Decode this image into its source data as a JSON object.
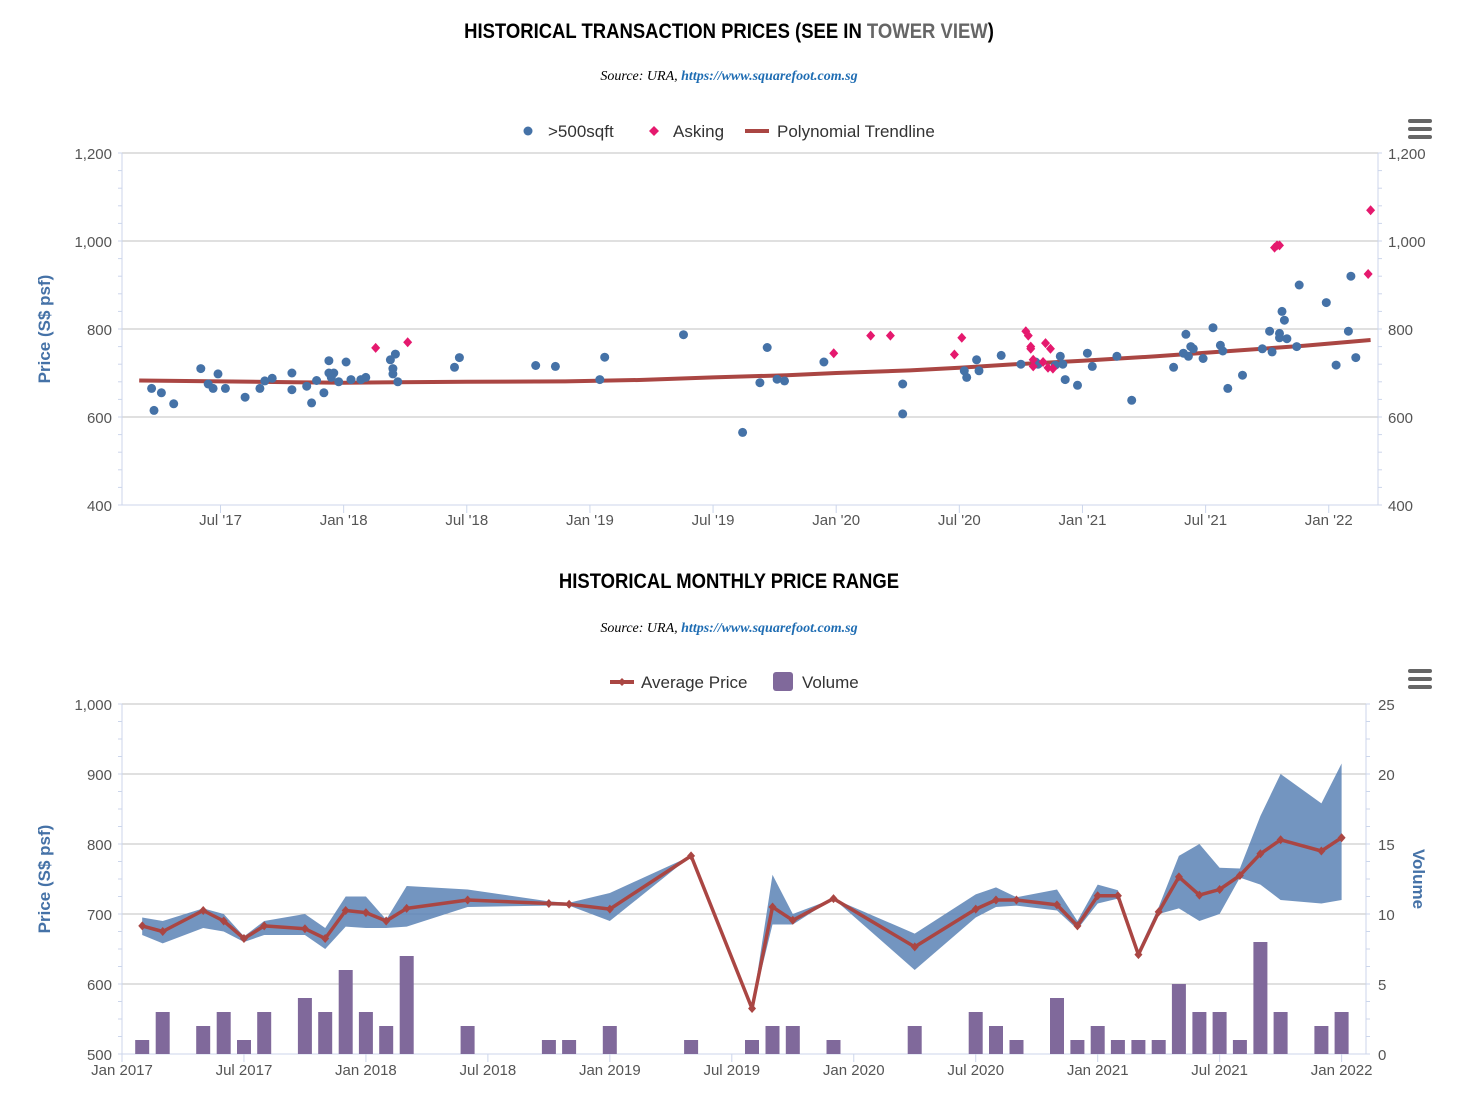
{
  "chart1": {
    "title_main": "HISTORICAL TRANSACTION PRICES (SEE IN ",
    "title_link": "TOWER VIEW",
    "title_end": ")",
    "source_prefix": "Source: URA, ",
    "source_link": "https://www.squarefoot.com.sg"
  },
  "chart2": {
    "title": "HISTORICAL MONTHLY PRICE RANGE",
    "source_prefix": "Source: URA, ",
    "source_link": "https://www.squarefoot.com.sg"
  },
  "colors": {
    "blue": "#4572a7",
    "pink": "#e5196e",
    "red": "#aa4643",
    "purple": "#80699b",
    "range": "#5b83b5"
  },
  "chart_data": [
    {
      "type": "scatter",
      "title": "HISTORICAL TRANSACTION PRICES (SEE IN TOWER VIEW)",
      "ylabel": "Price (S$ psf)",
      "ylim": [
        400,
        1200
      ],
      "yticks": [
        "400",
        "600",
        "800",
        "1,000",
        "1,200"
      ],
      "xlim": [
        2017.1,
        2022.2
      ],
      "xticks": [
        {
          "v": 2017.5,
          "label": "Jul '17"
        },
        {
          "v": 2018.0,
          "label": "Jan '18"
        },
        {
          "v": 2018.5,
          "label": "Jul '18"
        },
        {
          "v": 2019.0,
          "label": "Jan '19"
        },
        {
          "v": 2019.5,
          "label": "Jul '19"
        },
        {
          "v": 2020.0,
          "label": "Jan '20"
        },
        {
          "v": 2020.5,
          "label": "Jul '20"
        },
        {
          "v": 2021.0,
          "label": "Jan '21"
        },
        {
          "v": 2021.5,
          "label": "Jul '21"
        },
        {
          "v": 2022.0,
          "label": "Jan '22"
        }
      ],
      "grid": true,
      "legend": ">500sqft, Asking, Polynomial Trendline at top-center",
      "series": [
        {
          "name": ">500sqft",
          "marker": "circle",
          "points": [
            [
              2017.22,
              665
            ],
            [
              2017.23,
              615
            ],
            [
              2017.26,
              655
            ],
            [
              2017.31,
              630
            ],
            [
              2017.42,
              710
            ],
            [
              2017.45,
              675
            ],
            [
              2017.47,
              665
            ],
            [
              2017.49,
              698
            ],
            [
              2017.52,
              665
            ],
            [
              2017.6,
              645
            ],
            [
              2017.66,
              665
            ],
            [
              2017.68,
              682
            ],
            [
              2017.71,
              688
            ],
            [
              2017.79,
              662
            ],
            [
              2017.79,
              700
            ],
            [
              2017.85,
              670
            ],
            [
              2017.87,
              632
            ],
            [
              2017.89,
              683
            ],
            [
              2017.92,
              655
            ],
            [
              2017.94,
              700
            ],
            [
              2017.94,
              728
            ],
            [
              2017.95,
              690
            ],
            [
              2017.96,
              700
            ],
            [
              2017.98,
              680
            ],
            [
              2018.01,
              725
            ],
            [
              2018.03,
              685
            ],
            [
              2018.07,
              685
            ],
            [
              2018.09,
              690
            ],
            [
              2018.19,
              730
            ],
            [
              2018.2,
              710
            ],
            [
              2018.2,
              698
            ],
            [
              2018.21,
              743
            ],
            [
              2018.22,
              680
            ],
            [
              2018.45,
              713
            ],
            [
              2018.47,
              735
            ],
            [
              2018.78,
              717
            ],
            [
              2018.86,
              715
            ],
            [
              2019.04,
              685
            ],
            [
              2019.06,
              736
            ],
            [
              2019.38,
              787
            ],
            [
              2019.62,
              565
            ],
            [
              2019.69,
              678
            ],
            [
              2019.72,
              758
            ],
            [
              2019.76,
              686
            ],
            [
              2019.79,
              682
            ],
            [
              2019.95,
              725
            ],
            [
              2020.27,
              607
            ],
            [
              2020.27,
              675
            ],
            [
              2020.52,
              705
            ],
            [
              2020.53,
              690
            ],
            [
              2020.57,
              730
            ],
            [
              2020.58,
              705
            ],
            [
              2020.67,
              740
            ],
            [
              2020.75,
              720
            ],
            [
              2020.81,
              725
            ],
            [
              2020.82,
              720
            ],
            [
              2020.89,
              718
            ],
            [
              2020.91,
              738
            ],
            [
              2020.92,
              720
            ],
            [
              2020.93,
              685
            ],
            [
              2020.98,
              672
            ],
            [
              2021.02,
              745
            ],
            [
              2021.04,
              715
            ],
            [
              2021.14,
              738
            ],
            [
              2021.2,
              638
            ],
            [
              2021.37,
              713
            ],
            [
              2021.41,
              745
            ],
            [
              2021.42,
              788
            ],
            [
              2021.43,
              738
            ],
            [
              2021.44,
              760
            ],
            [
              2021.45,
              755
            ],
            [
              2021.49,
              733
            ],
            [
              2021.53,
              803
            ],
            [
              2021.56,
              763
            ],
            [
              2021.57,
              750
            ],
            [
              2021.59,
              665
            ],
            [
              2021.65,
              695
            ],
            [
              2021.73,
              755
            ],
            [
              2021.76,
              795
            ],
            [
              2021.77,
              748
            ],
            [
              2021.8,
              790
            ],
            [
              2021.8,
              780
            ],
            [
              2021.81,
              840
            ],
            [
              2021.82,
              820
            ],
            [
              2021.83,
              778
            ],
            [
              2021.87,
              760
            ],
            [
              2021.88,
              900
            ],
            [
              2021.99,
              860
            ],
            [
              2022.03,
              718
            ],
            [
              2022.08,
              795
            ],
            [
              2022.09,
              920
            ],
            [
              2022.11,
              735
            ]
          ]
        },
        {
          "name": "Asking",
          "marker": "diamond",
          "points": [
            [
              2018.13,
              757
            ],
            [
              2018.26,
              770
            ],
            [
              2019.99,
              745
            ],
            [
              2020.14,
              785
            ],
            [
              2020.22,
              785
            ],
            [
              2020.48,
              742
            ],
            [
              2020.51,
              780
            ],
            [
              2020.77,
              795
            ],
            [
              2020.78,
              785
            ],
            [
              2020.79,
              760
            ],
            [
              2020.79,
              755
            ],
            [
              2020.8,
              730
            ],
            [
              2020.8,
              715
            ],
            [
              2020.84,
              725
            ],
            [
              2020.85,
              768
            ],
            [
              2020.86,
              712
            ],
            [
              2020.87,
              755
            ],
            [
              2020.88,
              710
            ],
            [
              2021.78,
              985
            ],
            [
              2021.79,
              990
            ],
            [
              2021.8,
              990
            ],
            [
              2022.16,
              925
            ],
            [
              2022.17,
              1070
            ]
          ]
        },
        {
          "name": "Polynomial Trendline",
          "marker": "line",
          "points": [
            [
              2017.17,
              683
            ],
            [
              2017.5,
              681
            ],
            [
              2017.8,
              679
            ],
            [
              2018.0,
              678
            ],
            [
              2018.5,
              680
            ],
            [
              2018.9,
              681
            ],
            [
              2019.2,
              684
            ],
            [
              2019.5,
              690
            ],
            [
              2019.8,
              695
            ],
            [
              2020.0,
              700
            ],
            [
              2020.3,
              706
            ],
            [
              2020.5,
              712
            ],
            [
              2020.7,
              719
            ],
            [
              2021.0,
              728
            ],
            [
              2021.3,
              738
            ],
            [
              2021.6,
              750
            ],
            [
              2021.9,
              762
            ],
            [
              2022.17,
              775
            ]
          ]
        }
      ]
    },
    {
      "type": "line",
      "title": "HISTORICAL MONTHLY PRICE RANGE",
      "ylabel": "Price (S$ psf)",
      "y2label": "Volume",
      "ylim": [
        500,
        1000
      ],
      "y2lim": [
        0,
        25
      ],
      "yticks": [
        "500",
        "600",
        "700",
        "800",
        "900",
        "1,000"
      ],
      "y2ticks": [
        "0",
        "5",
        "10",
        "15",
        "20",
        "25"
      ],
      "xlim": [
        2017.0,
        2022.1
      ],
      "xticks": [
        {
          "v": 2017.0,
          "label": "Jan 2017"
        },
        {
          "v": 2017.5,
          "label": "Jul 2017"
        },
        {
          "v": 2018.0,
          "label": "Jan 2018"
        },
        {
          "v": 2018.5,
          "label": "Jul 2018"
        },
        {
          "v": 2019.0,
          "label": "Jan 2019"
        },
        {
          "v": 2019.5,
          "label": "Jul 2019"
        },
        {
          "v": 2020.0,
          "label": "Jan 2020"
        },
        {
          "v": 2020.5,
          "label": "Jul 2020"
        },
        {
          "v": 2021.0,
          "label": "Jan 2021"
        },
        {
          "v": 2021.5,
          "label": "Jul 2021"
        },
        {
          "v": 2022.0,
          "label": "Jan 2022"
        }
      ],
      "grid": true,
      "legend": "Average Price, Volume at top-center",
      "series": [
        {
          "name": "Average Price",
          "points": [
            [
              2017.083,
              683
            ],
            [
              2017.167,
              675
            ],
            [
              2017.333,
              705
            ],
            [
              2017.417,
              690
            ],
            [
              2017.5,
              665
            ],
            [
              2017.583,
              683
            ],
            [
              2017.75,
              679
            ],
            [
              2017.833,
              665
            ],
            [
              2017.917,
              705
            ],
            [
              2018.0,
              702
            ],
            [
              2018.083,
              690
            ],
            [
              2018.167,
              708
            ],
            [
              2018.417,
              720
            ],
            [
              2018.75,
              715
            ],
            [
              2018.833,
              714
            ],
            [
              2019.0,
              707
            ],
            [
              2019.333,
              783
            ],
            [
              2019.583,
              565
            ],
            [
              2019.667,
              710
            ],
            [
              2019.75,
              691
            ],
            [
              2019.917,
              722
            ],
            [
              2020.25,
              653
            ],
            [
              2020.5,
              707
            ],
            [
              2020.583,
              720
            ],
            [
              2020.667,
              720
            ],
            [
              2020.833,
              713
            ],
            [
              2020.917,
              683
            ],
            [
              2021.0,
              726
            ],
            [
              2021.083,
              726
            ],
            [
              2021.167,
              642
            ],
            [
              2021.25,
              703
            ],
            [
              2021.333,
              753
            ],
            [
              2021.417,
              727
            ],
            [
              2021.5,
              735
            ],
            [
              2021.583,
              755
            ],
            [
              2021.667,
              786
            ],
            [
              2021.75,
              806
            ],
            [
              2021.917,
              790
            ],
            [
              2022.0,
              809
            ]
          ]
        },
        {
          "name": "Volume",
          "x": [
            2017.083,
            2017.167,
            2017.333,
            2017.417,
            2017.5,
            2017.583,
            2017.75,
            2017.833,
            2017.917,
            2018.0,
            2018.083,
            2018.167,
            2018.417,
            2018.75,
            2018.833,
            2019.0,
            2019.333,
            2019.583,
            2019.667,
            2019.75,
            2019.917,
            2020.25,
            2020.5,
            2020.583,
            2020.667,
            2020.833,
            2020.917,
            2021.0,
            2021.083,
            2021.167,
            2021.25,
            2021.333,
            2021.417,
            2021.5,
            2021.583,
            2021.667,
            2021.75,
            2021.917,
            2022.0
          ],
          "values": [
            1,
            3,
            2,
            3,
            1,
            3,
            4,
            3,
            6,
            3,
            2,
            7,
            2,
            1,
            1,
            2,
            1,
            1,
            2,
            2,
            1,
            2,
            3,
            2,
            1,
            4,
            1,
            2,
            1,
            1,
            1,
            5,
            3,
            3,
            1,
            8,
            3,
            2,
            3
          ]
        },
        {
          "name": "Range",
          "low": [
            670,
            658,
            680,
            675,
            660,
            670,
            670,
            650,
            682,
            680,
            680,
            682,
            710,
            712,
            712,
            690,
            783,
            565,
            685,
            685,
            722,
            620,
            695,
            710,
            712,
            705,
            678,
            715,
            722,
            640,
            700,
            708,
            690,
            700,
            752,
            742,
            720,
            715,
            720
          ],
          "high": [
            695,
            690,
            708,
            700,
            668,
            690,
            700,
            680,
            725,
            725,
            692,
            740,
            735,
            718,
            716,
            730,
            783,
            565,
            756,
            700,
            722,
            672,
            728,
            738,
            724,
            735,
            690,
            742,
            734,
            648,
            710,
            783,
            800,
            766,
            765,
            840,
            900,
            858,
            915
          ]
        }
      ]
    }
  ]
}
